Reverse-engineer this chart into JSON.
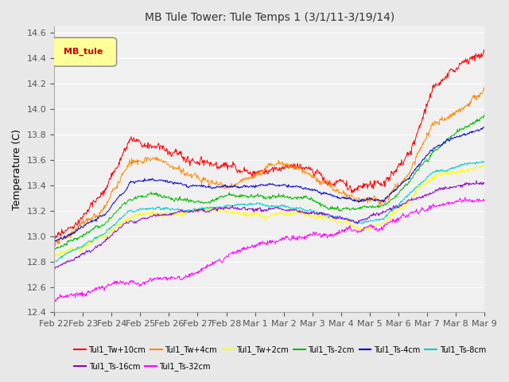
{
  "title": "MB Tule Tower: Tule Temps 1 (3/1/11-3/19/14)",
  "ylabel": "Temperature (C)",
  "ylim": [
    12.4,
    14.65
  ],
  "yticks": [
    12.4,
    12.6,
    12.8,
    13.0,
    13.2,
    13.4,
    13.6,
    13.8,
    14.0,
    14.2,
    14.4,
    14.6
  ],
  "x_labels": [
    "Feb 22",
    "Feb 23",
    "Feb 24",
    "Feb 25",
    "Feb 26",
    "Feb 27",
    "Feb 28",
    "Mar 1",
    "Mar 2",
    "Mar 3",
    "Mar 4",
    "Mar 5",
    "Mar 6",
    "Mar 7",
    "Mar 8",
    "Mar 9"
  ],
  "series": [
    {
      "name": "Tul1_Tw+10cm",
      "color": "#ff0000"
    },
    {
      "name": "Tul1_Tw+4cm",
      "color": "#ff8800"
    },
    {
      "name": "Tul1_Tw+2cm",
      "color": "#ffff00"
    },
    {
      "name": "Tul1_Ts-2cm",
      "color": "#00bb00"
    },
    {
      "name": "Tul1_Ts-4cm",
      "color": "#0000cc"
    },
    {
      "name": "Tul1_Ts-8cm",
      "color": "#00cccc"
    },
    {
      "name": "Tul1_Ts-16cm",
      "color": "#8800cc"
    },
    {
      "name": "Tul1_Ts-32cm",
      "color": "#ff00ff"
    }
  ],
  "legend_box_color": "#ffff99",
  "legend_box_text": "MB_tule",
  "legend_box_text_color": "#cc0000",
  "background_color": "#e8e8e8",
  "plot_bg_color": "#f0f0f0",
  "grid_color": "#ffffff"
}
